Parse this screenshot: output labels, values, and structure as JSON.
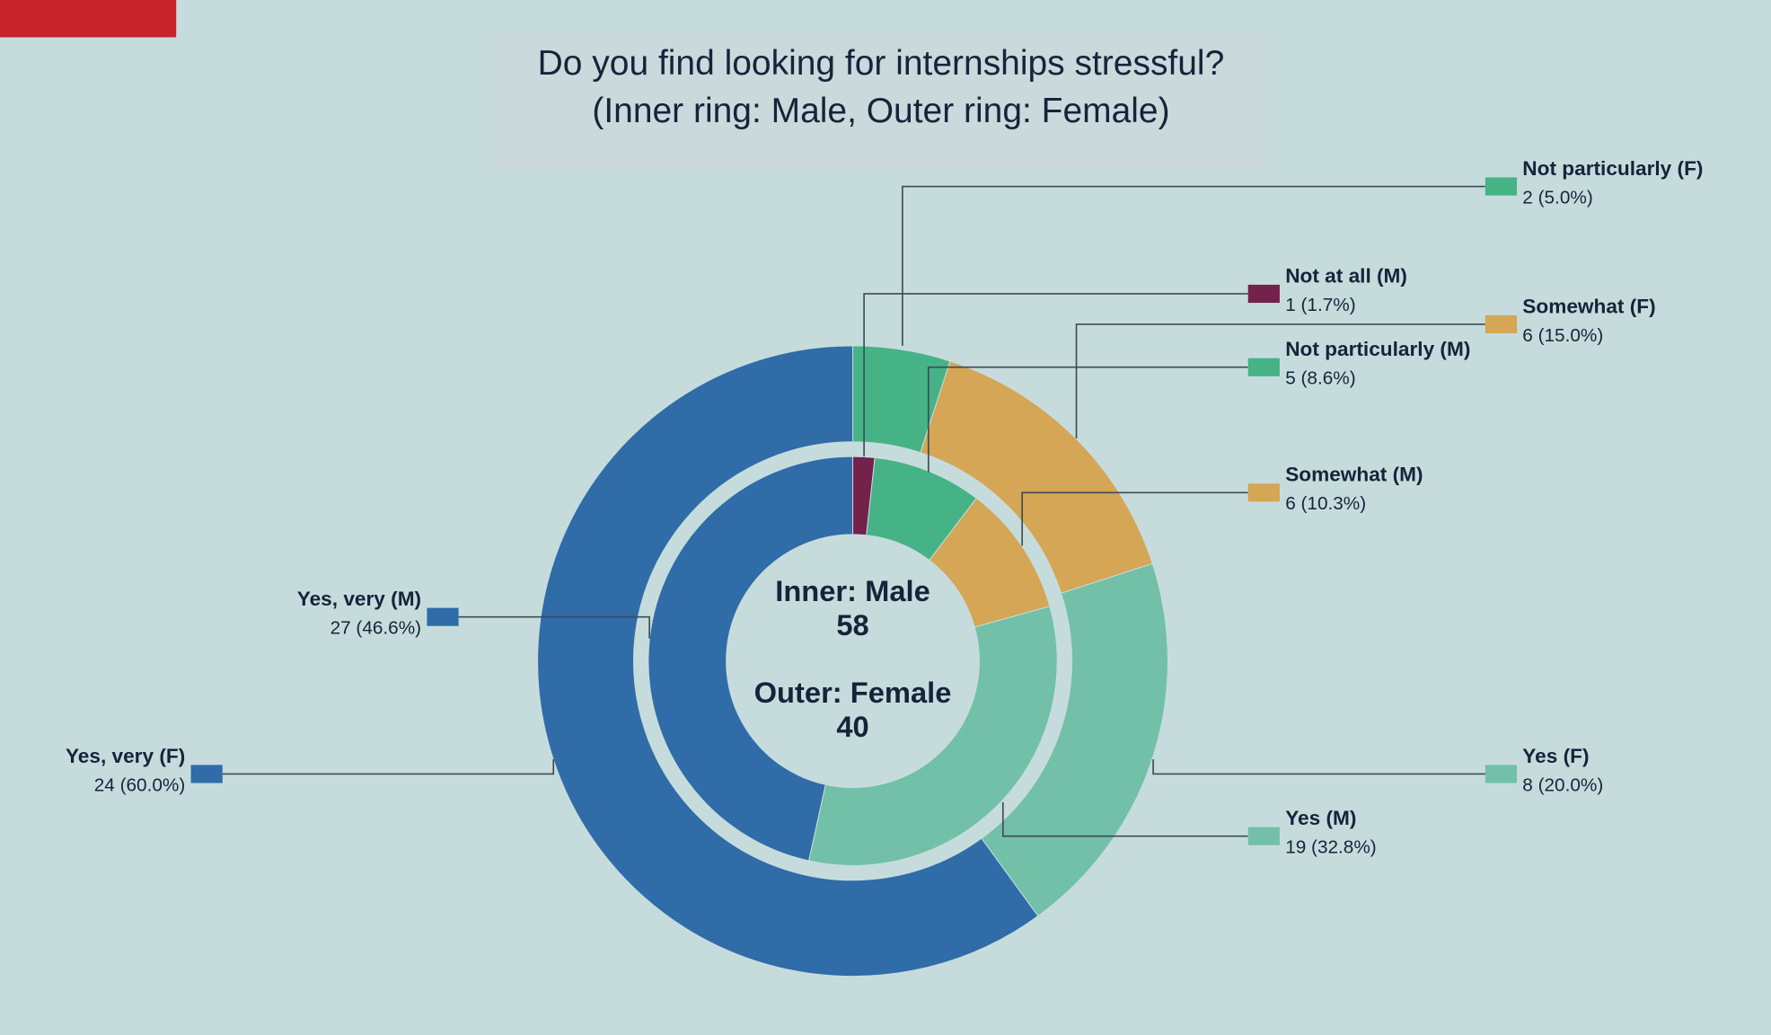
{
  "chart_data": {
    "type": "pie",
    "subtype": "nested-donut",
    "title": "Do you find looking for internships stressful?",
    "subtitle": "(Inner ring: Male, Outer ring: Female)",
    "center_text": [
      "Inner: Male",
      "58",
      "Outer: Female",
      "40"
    ],
    "colors": {
      "Not at all": "#74214c",
      "Not particularly": "#45b386",
      "Somewhat": "#d4a655",
      "Yes": "#72c0a8",
      "Yes, very": "#2f6ca8"
    },
    "series": [
      {
        "name": "Male",
        "ring": "inner",
        "total": 58,
        "slices": [
          {
            "category": "Not at all",
            "value": 1,
            "label": "Not at all (M)",
            "value_text": "1 (1.7%)"
          },
          {
            "category": "Not particularly",
            "value": 5,
            "label": "Not particularly (M)",
            "value_text": "5 (8.6%)"
          },
          {
            "category": "Somewhat",
            "value": 6,
            "label": "Somewhat (M)",
            "value_text": "6 (10.3%)"
          },
          {
            "category": "Yes",
            "value": 19,
            "label": "Yes (M)",
            "value_text": "19 (32.8%)"
          },
          {
            "category": "Yes, very",
            "value": 27,
            "label": "Yes, very (M)",
            "value_text": "27 (46.6%)"
          }
        ]
      },
      {
        "name": "Female",
        "ring": "outer",
        "total": 40,
        "slices": [
          {
            "category": "Not particularly",
            "value": 2,
            "label": "Not particularly (F)",
            "value_text": "2 (5.0%)"
          },
          {
            "category": "Somewhat",
            "value": 6,
            "label": "Somewhat (F)",
            "value_text": "6 (15.0%)"
          },
          {
            "category": "Yes",
            "value": 8,
            "label": "Yes (F)",
            "value_text": "8 (20.0%)"
          },
          {
            "category": "Yes, very",
            "value": 24,
            "label": "Yes, very (F)",
            "value_text": "24 (60.0%)"
          }
        ]
      }
    ]
  }
}
